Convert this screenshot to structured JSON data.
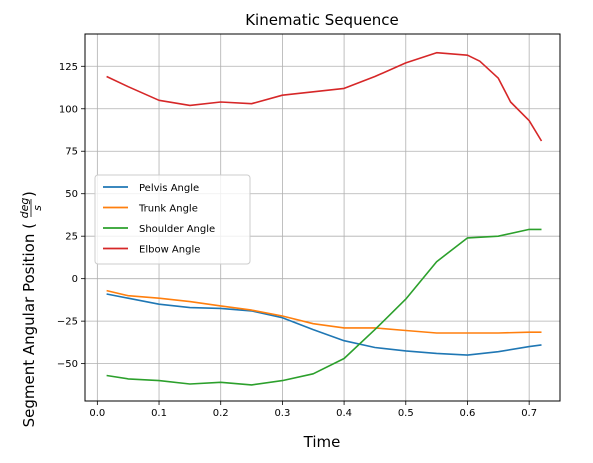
{
  "chart_data": {
    "type": "line",
    "title": "Kinematic Sequence",
    "xlabel": "Time",
    "ylabel": "Segment Angular Position (",
    "ylabel_unit_numerator": "deg",
    "ylabel_unit_denominator": "s",
    "ylabel_close": ")",
    "xlim": [
      -0.02,
      0.75
    ],
    "ylim": [
      -72,
      144
    ],
    "xticks": [
      0.0,
      0.1,
      0.2,
      0.3,
      0.4,
      0.5,
      0.6,
      0.7
    ],
    "xtick_labels": [
      "0.0",
      "0.1",
      "0.2",
      "0.3",
      "0.4",
      "0.5",
      "0.6",
      "0.7"
    ],
    "yticks": [
      -50,
      -25,
      0,
      25,
      50,
      75,
      100,
      125
    ],
    "ytick_labels": [
      "−50",
      "−25",
      "0",
      "25",
      "50",
      "75",
      "100",
      "125"
    ],
    "grid": true,
    "legend_position": "center-left",
    "series": [
      {
        "name": "Pelvis Angle",
        "color": "#1f77b4",
        "x": [
          0.015,
          0.05,
          0.1,
          0.15,
          0.2,
          0.25,
          0.3,
          0.35,
          0.4,
          0.45,
          0.5,
          0.55,
          0.6,
          0.65,
          0.7,
          0.72
        ],
        "y": [
          -9,
          -11.5,
          -15,
          -17,
          -17.5,
          -19,
          -23,
          -30,
          -36.5,
          -40.5,
          -42.5,
          -44,
          -45,
          -43,
          -40,
          -39
        ]
      },
      {
        "name": "Trunk Angle",
        "color": "#ff7f0e",
        "x": [
          0.015,
          0.05,
          0.1,
          0.15,
          0.2,
          0.25,
          0.3,
          0.35,
          0.4,
          0.45,
          0.5,
          0.55,
          0.6,
          0.65,
          0.7,
          0.72
        ],
        "y": [
          -7,
          -10,
          -11.5,
          -13.5,
          -16,
          -18.5,
          -22,
          -26.5,
          -29,
          -29,
          -30.5,
          -32,
          -32,
          -32,
          -31.5,
          -31.5
        ]
      },
      {
        "name": "Shoulder Angle",
        "color": "#2ca02c",
        "x": [
          0.015,
          0.05,
          0.1,
          0.15,
          0.2,
          0.25,
          0.3,
          0.35,
          0.4,
          0.45,
          0.5,
          0.55,
          0.6,
          0.65,
          0.7,
          0.72
        ],
        "y": [
          -57,
          -59,
          -60,
          -62,
          -61,
          -62.5,
          -60,
          -56,
          -47,
          -30,
          -12,
          10,
          24,
          25,
          29,
          29
        ]
      },
      {
        "name": "Elbow Angle",
        "color": "#d62728",
        "x": [
          0.015,
          0.05,
          0.1,
          0.15,
          0.2,
          0.25,
          0.3,
          0.35,
          0.4,
          0.45,
          0.5,
          0.55,
          0.6,
          0.62,
          0.65,
          0.67,
          0.7,
          0.72
        ],
        "y": [
          119,
          113,
          105,
          102,
          104,
          103,
          108,
          110,
          112,
          119,
          127,
          133,
          131.5,
          128,
          118,
          104,
          93,
          81
        ]
      }
    ]
  }
}
